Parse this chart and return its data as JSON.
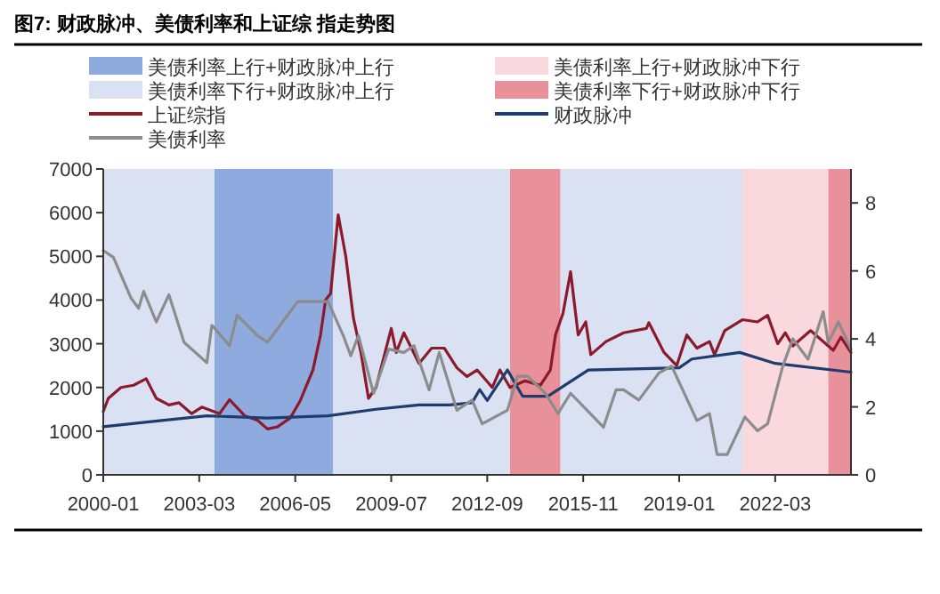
{
  "chart_data": {
    "type": "line",
    "title": "图7: 财政脉冲、美债利率和上证综 指走势图",
    "xlim": [
      "2000-01",
      "2024-09"
    ],
    "xticks": [
      "2000-01",
      "2003-03",
      "2006-05",
      "2009-07",
      "2012-09",
      "2015-11",
      "2019-01",
      "2022-03"
    ],
    "ylim": [
      0,
      7000
    ],
    "yticks": [
      0,
      1000,
      2000,
      3000,
      4000,
      5000,
      6000,
      7000
    ],
    "y2lim": [
      0,
      9
    ],
    "y2ticks": [
      0,
      2,
      4,
      6,
      8
    ],
    "legend": "top",
    "grid": false,
    "bands": [
      {
        "axis": "x",
        "from": "2003-09",
        "to": "2007-08",
        "label": "美债利率上行+财政脉冲上行",
        "color": "#8eaadf"
      },
      {
        "axis": "x",
        "from": "2021-02",
        "to": "2023-12",
        "label": "美债利率上行+财政脉冲下行",
        "color": "#f9d9dd"
      },
      {
        "axis": "x",
        "from": "2000-01",
        "to": "2003-09",
        "label": "美债利率下行+财政脉冲上行",
        "color": "#d9e1f2"
      },
      {
        "axis": "x",
        "from": "2013-06",
        "to": "2015-02",
        "label": "美债利率下行+财政脉冲下行",
        "color": "#e8919b"
      },
      {
        "axis": "x",
        "from": "2007-08",
        "to": "2013-06",
        "color": "#d9e1f2"
      },
      {
        "axis": "x",
        "from": "2015-02",
        "to": "2021-02",
        "color": "#d9e1f2"
      },
      {
        "axis": "x",
        "from": "2023-12",
        "to": "2024-09",
        "color": "#e8919b"
      }
    ],
    "series": [
      {
        "name": "上证综指",
        "color": "#8b1a2b",
        "x": [
          "2000-01",
          "2000-03",
          "2000-08",
          "2001-01",
          "2001-06",
          "2001-10",
          "2002-03",
          "2002-07",
          "2002-12",
          "2003-04",
          "2003-11",
          "2004-03",
          "2004-09",
          "2005-02",
          "2005-06",
          "2005-10",
          "2006-03",
          "2006-07",
          "2006-12",
          "2007-03",
          "2007-05",
          "2007-07",
          "2007-10",
          "2008-01",
          "2008-04",
          "2008-07",
          "2008-10",
          "2009-01",
          "2009-07",
          "2009-09",
          "2009-12",
          "2010-06",
          "2010-11",
          "2011-04",
          "2011-09",
          "2012-01",
          "2012-05",
          "2012-11",
          "2013-02",
          "2013-06",
          "2013-12",
          "2014-06",
          "2014-10",
          "2014-12",
          "2015-03",
          "2015-06",
          "2015-09",
          "2015-12",
          "2016-02",
          "2016-08",
          "2017-03",
          "2017-12",
          "2018-01",
          "2018-07",
          "2018-12",
          "2019-04",
          "2019-08",
          "2020-01",
          "2020-03",
          "2020-07",
          "2021-02",
          "2021-08",
          "2021-12",
          "2022-04",
          "2022-07",
          "2022-10",
          "2023-05",
          "2023-12",
          "2024-02",
          "2024-05",
          "2024-09"
        ],
        "values": [
          1450,
          1750,
          2000,
          2050,
          2200,
          1750,
          1600,
          1650,
          1400,
          1550,
          1400,
          1720,
          1350,
          1250,
          1050,
          1100,
          1300,
          1700,
          2400,
          3200,
          4000,
          4150,
          5950,
          5000,
          3600,
          2800,
          1750,
          2000,
          3350,
          2800,
          3250,
          2550,
          2900,
          2900,
          2450,
          2250,
          2400,
          2000,
          2400,
          2000,
          2150,
          2050,
          2400,
          3200,
          3700,
          4650,
          3200,
          3500,
          2750,
          3050,
          3250,
          3350,
          3480,
          2800,
          2500,
          3200,
          2900,
          3050,
          2750,
          3300,
          3550,
          3500,
          3650,
          3000,
          3250,
          2950,
          3300,
          2950,
          2850,
          3150,
          2800
        ]
      },
      {
        "name": "财政脉冲",
        "color": "#1f3c6e",
        "x": [
          "2000-01",
          "2002-01",
          "2003-06",
          "2005-06",
          "2007-06",
          "2009-01",
          "2010-06",
          "2011-06",
          "2012-03",
          "2012-06",
          "2012-09",
          "2013-05",
          "2013-11",
          "2014-09",
          "2016-01",
          "2019-01",
          "2019-06",
          "2021-01",
          "2022-03",
          "2024-09"
        ],
        "values": [
          1100,
          1250,
          1350,
          1300,
          1350,
          1500,
          1600,
          1600,
          1650,
          1950,
          1700,
          2400,
          1800,
          1800,
          2400,
          2450,
          2650,
          2800,
          2550,
          2350
        ]
      },
      {
        "name": "美债利率",
        "color": "#8c8c8c",
        "axis": "y2",
        "x": [
          "2000-01",
          "2000-05",
          "2000-12",
          "2001-03",
          "2001-05",
          "2001-10",
          "2002-03",
          "2002-09",
          "2003-06",
          "2003-08",
          "2004-03",
          "2004-06",
          "2005-02",
          "2005-06",
          "2006-06",
          "2007-06",
          "2007-12",
          "2008-03",
          "2008-06",
          "2008-12",
          "2009-06",
          "2009-12",
          "2010-04",
          "2010-10",
          "2011-02",
          "2011-09",
          "2012-03",
          "2012-07",
          "2013-05",
          "2013-09",
          "2014-01",
          "2014-08",
          "2015-01",
          "2015-06",
          "2016-07",
          "2016-12",
          "2017-03",
          "2017-09",
          "2018-05",
          "2018-10",
          "2019-08",
          "2020-01",
          "2020-04",
          "2020-08",
          "2021-03",
          "2021-08",
          "2021-12",
          "2022-06",
          "2022-10",
          "2023-04",
          "2023-10",
          "2023-12",
          "2024-04",
          "2024-09"
        ],
        "values": [
          6.6,
          6.4,
          5.2,
          4.9,
          5.4,
          4.5,
          5.3,
          3.9,
          3.3,
          4.4,
          3.8,
          4.7,
          4.1,
          3.9,
          5.1,
          5.1,
          4.1,
          3.5,
          4.1,
          2.4,
          3.7,
          3.6,
          3.8,
          2.5,
          3.6,
          1.9,
          2.2,
          1.5,
          1.9,
          2.9,
          2.9,
          2.4,
          1.8,
          2.4,
          1.4,
          2.5,
          2.5,
          2.2,
          3.0,
          3.2,
          1.6,
          1.8,
          0.6,
          0.6,
          1.7,
          1.3,
          1.5,
          3.2,
          4.0,
          3.4,
          4.8,
          3.9,
          4.5,
          3.7
        ]
      }
    ]
  }
}
